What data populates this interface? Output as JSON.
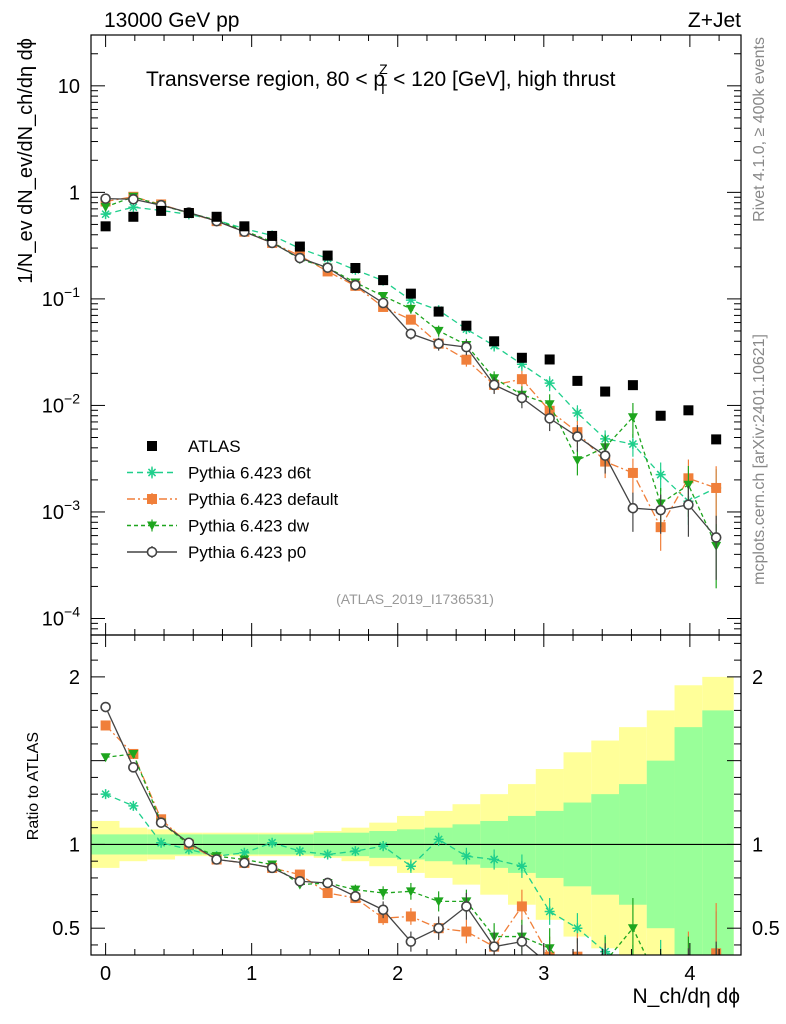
{
  "chart_data": {
    "type": "scatter",
    "header_left": "13000 GeV pp",
    "header_right": "Z+Jet",
    "title": {
      "pre": "Transverse region, 80 < p",
      "sup": "Z",
      "sub": "T",
      "post": " < 120 [GeV], high thrust"
    },
    "ylabel_main": "1/N_ev dN_ev/dN_ch/dη dϕ",
    "ylabel_ratio": "Ratio to ATLAS",
    "xlabel": "N_ch/dη dϕ",
    "analysis_id": "(ATLAS_2019_I1736531)",
    "side_label_1": "Rivet 4.1.0, ≥ 400k events",
    "side_label_2": "mcplots.cern.ch [arXiv:2401.10621]",
    "xlim": [
      -0.1,
      4.35
    ],
    "ylim_main": [
      7e-05,
      30
    ],
    "ylim_ratio": [
      0.34,
      2.25
    ],
    "main_y_ticks": [
      {
        "value": 10,
        "label": "10"
      },
      {
        "value": 1,
        "label": "1"
      },
      {
        "value": 0.1,
        "label": "10",
        "exp": "−1"
      },
      {
        "value": 0.01,
        "label": "10",
        "exp": "−2"
      },
      {
        "value": 0.001,
        "label": "10",
        "exp": "−3"
      },
      {
        "value": 0.0001,
        "label": "10",
        "exp": "−4"
      }
    ],
    "ratio_y_ticks": [
      {
        "value": 2,
        "label": "2"
      },
      {
        "value": 1,
        "label": "1"
      },
      {
        "value": 0.5,
        "label": "0.5"
      }
    ],
    "x_ticks": [
      0,
      1,
      2,
      3,
      4
    ],
    "x": [
      0.0,
      0.19,
      0.38,
      0.57,
      0.76,
      0.95,
      1.14,
      1.33,
      1.52,
      1.71,
      1.9,
      2.09,
      2.28,
      2.47,
      2.66,
      2.85,
      3.04,
      3.23,
      3.42,
      3.61,
      3.8,
      3.99,
      4.18
    ],
    "bin_edges": [
      -0.1,
      0.095,
      0.285,
      0.475,
      0.665,
      0.855,
      1.045,
      1.235,
      1.425,
      1.615,
      1.805,
      1.995,
      2.185,
      2.375,
      2.565,
      2.755,
      2.945,
      3.135,
      3.325,
      3.515,
      3.705,
      3.895,
      4.085,
      4.3
    ],
    "data": {
      "name": "ATLAS",
      "color": "#000000",
      "values": [
        0.48,
        0.59,
        0.67,
        0.64,
        0.59,
        0.48,
        0.39,
        0.31,
        0.255,
        0.195,
        0.15,
        0.112,
        0.076,
        0.056,
        0.04,
        0.028,
        0.027,
        0.017,
        0.0135,
        0.0155,
        0.008,
        0.009,
        0.0048
      ],
      "band_inner": [
        0.06,
        0.06,
        0.06,
        0.06,
        0.06,
        0.06,
        0.06,
        0.06,
        0.07,
        0.07,
        0.08,
        0.09,
        0.1,
        0.12,
        0.14,
        0.17,
        0.2,
        0.25,
        0.3,
        0.36,
        0.5,
        0.7,
        0.8
      ],
      "band_outer": [
        0.14,
        0.1,
        0.09,
        0.07,
        0.07,
        0.07,
        0.07,
        0.07,
        0.08,
        0.1,
        0.13,
        0.17,
        0.2,
        0.24,
        0.3,
        0.36,
        0.45,
        0.55,
        0.62,
        0.7,
        0.8,
        0.95,
        1.0
      ]
    },
    "series": [
      {
        "name": "Pythia 6.423 d6t",
        "color": "#1fcf8c",
        "marker": "star",
        "dash": "6,4",
        "ratio": [
          1.3,
          1.23,
          1.01,
          0.97,
          0.93,
          0.95,
          1.01,
          0.96,
          0.94,
          0.96,
          0.99,
          0.87,
          1.03,
          0.93,
          0.91,
          0.87,
          0.6,
          0.5,
          0.36,
          0.28,
          0.28,
          0.14,
          0.35
        ],
        "err": [
          0.02,
          0.02,
          0.02,
          0.02,
          0.02,
          0.02,
          0.02,
          0.02,
          0.02,
          0.02,
          0.03,
          0.04,
          0.04,
          0.05,
          0.06,
          0.07,
          0.08,
          0.09,
          0.1,
          0.12,
          0.15,
          0.2,
          0.25
        ]
      },
      {
        "name": "Pythia 6.423 default",
        "color": "#f07f3a",
        "marker": "square",
        "dash": "8,3,2,3",
        "ratio": [
          1.71,
          1.54,
          1.15,
          1.0,
          0.91,
          0.89,
          0.86,
          0.82,
          0.71,
          0.68,
          0.56,
          0.57,
          0.5,
          0.48,
          0.39,
          0.63,
          0.33,
          0.33,
          0.22,
          0.15,
          0.09,
          0.23,
          0.35
        ],
        "err": [
          0.02,
          0.02,
          0.02,
          0.02,
          0.02,
          0.02,
          0.02,
          0.02,
          0.03,
          0.03,
          0.04,
          0.05,
          0.06,
          0.07,
          0.08,
          0.1,
          0.12,
          0.14,
          0.15,
          0.18,
          0.2,
          0.25,
          0.3
        ]
      },
      {
        "name": "Pythia 6.423 dw",
        "color": "#1ea51e",
        "marker": "triangle-down",
        "dash": "4,3",
        "ratio": [
          1.52,
          1.54,
          1.13,
          1.0,
          0.93,
          0.91,
          0.88,
          0.76,
          0.77,
          0.73,
          0.71,
          0.72,
          0.66,
          0.66,
          0.45,
          0.45,
          0.38,
          0.18,
          0.3,
          0.5,
          0.15,
          0.2,
          0.1
        ],
        "err": [
          0.02,
          0.02,
          0.02,
          0.02,
          0.02,
          0.02,
          0.02,
          0.02,
          0.03,
          0.03,
          0.04,
          0.05,
          0.06,
          0.07,
          0.08,
          0.1,
          0.12,
          0.14,
          0.15,
          0.18,
          0.2,
          0.25,
          0.3
        ]
      },
      {
        "name": "Pythia 6.423 p0",
        "color": "#444444",
        "marker": "circle",
        "dash": "",
        "ratio": [
          1.82,
          1.46,
          1.13,
          1.01,
          0.91,
          0.89,
          0.86,
          0.78,
          0.77,
          0.69,
          0.61,
          0.42,
          0.5,
          0.63,
          0.39,
          0.42,
          0.28,
          0.3,
          0.25,
          0.07,
          0.13,
          0.13,
          0.12
        ],
        "err": [
          0.02,
          0.02,
          0.02,
          0.02,
          0.02,
          0.02,
          0.02,
          0.02,
          0.03,
          0.03,
          0.05,
          0.06,
          0.07,
          0.08,
          0.09,
          0.1,
          0.12,
          0.14,
          0.16,
          0.2,
          0.2,
          0.25,
          0.3
        ]
      }
    ]
  }
}
